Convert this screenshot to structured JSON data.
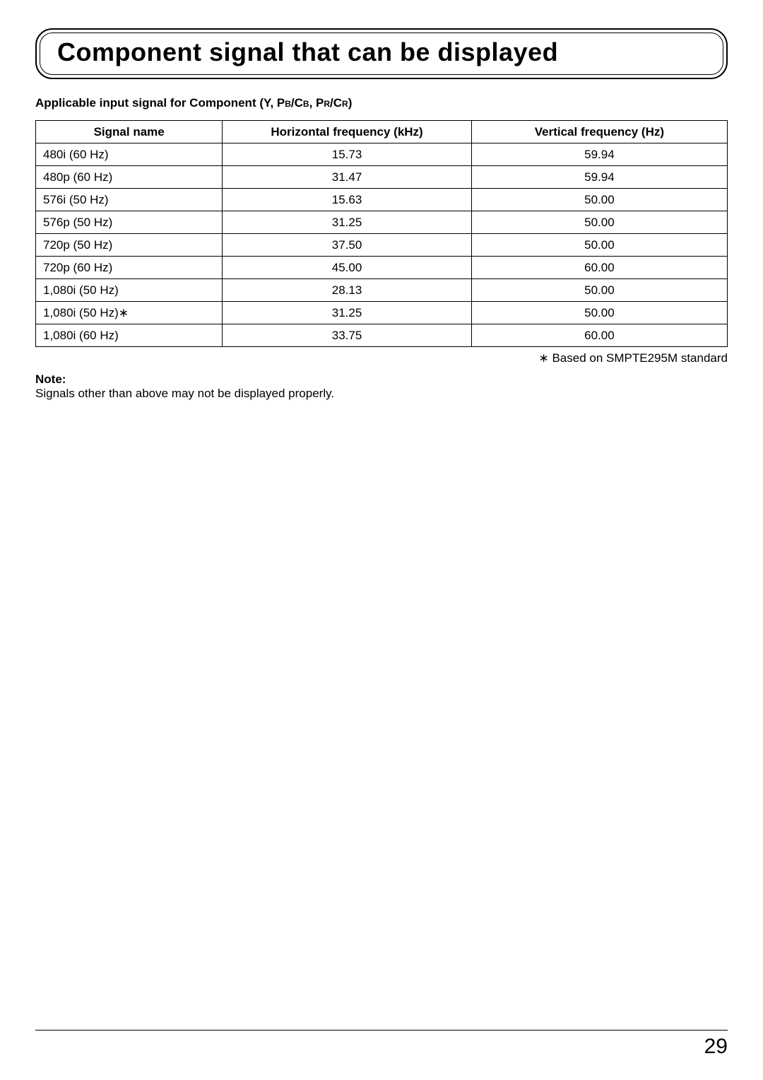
{
  "title": "Component signal that can be displayed",
  "subtitle_prefix": "Applicable input signal for Component (Y, P",
  "subtitle_b": "B",
  "subtitle_slash_c": "/C",
  "subtitle_comma_p": ", P",
  "subtitle_r": "R",
  "subtitle_close": ")",
  "table": {
    "headers": [
      "Signal name",
      "Horizontal frequency (kHz)",
      "Vertical frequency (Hz)"
    ],
    "rows": [
      [
        "480i (60 Hz)",
        "15.73",
        "59.94"
      ],
      [
        "480p (60 Hz)",
        "31.47",
        "59.94"
      ],
      [
        "576i (50 Hz)",
        "15.63",
        "50.00"
      ],
      [
        "576p (50 Hz)",
        "31.25",
        "50.00"
      ],
      [
        "720p (50 Hz)",
        "37.50",
        "50.00"
      ],
      [
        "720p (60 Hz)",
        "45.00",
        "60.00"
      ],
      [
        "1,080i (50 Hz)",
        "28.13",
        "50.00"
      ],
      [
        "1,080i (50 Hz)∗",
        "31.25",
        "50.00"
      ],
      [
        "1,080i (60 Hz)",
        "33.75",
        "60.00"
      ]
    ],
    "col_widths_pct": [
      27,
      36,
      37
    ]
  },
  "footnote_right": "∗ Based on SMPTE295M standard",
  "note_label": "Note:",
  "note_body": "Signals other than above may not be displayed properly.",
  "page_number": "29",
  "colors": {
    "text": "#000000",
    "border": "#000000",
    "background": "#ffffff"
  }
}
